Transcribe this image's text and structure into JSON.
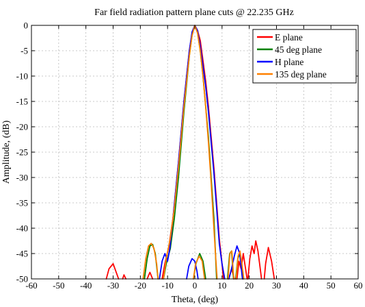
{
  "chart_data": {
    "type": "line",
    "title": "Far field radiation pattern plane cuts @ 22.235 GHz",
    "xlabel": "Theta, (deg)",
    "ylabel": "Amplitude, (dB)",
    "xlim": [
      -60,
      60
    ],
    "ylim": [
      -50,
      0
    ],
    "xticks": [
      -60,
      -50,
      -40,
      -30,
      -20,
      -10,
      0,
      10,
      20,
      30,
      40,
      50,
      60
    ],
    "yticks": [
      0,
      -5,
      -10,
      -15,
      -20,
      -25,
      -30,
      -35,
      -40,
      -45,
      -50
    ],
    "grid": true,
    "legend_position": "top-right",
    "series": [
      {
        "name": "E plane",
        "color": "#ff0000",
        "segments": [
          [
            [
              -32.5,
              -50
            ],
            [
              -31.5,
              -48
            ],
            [
              -30,
              -47
            ],
            [
              -29,
              -48.5
            ],
            [
              -28,
              -50
            ]
          ],
          [
            [
              -26.5,
              -50
            ],
            [
              -26,
              -49.2
            ],
            [
              -25.3,
              -50
            ]
          ],
          [
            [
              -17.5,
              -50
            ],
            [
              -16.5,
              -48.7
            ],
            [
              -15.5,
              -50
            ]
          ],
          [
            [
              -12,
              -50
            ],
            [
              -11,
              -47
            ],
            [
              -9.5,
              -43.5
            ],
            [
              -8,
              -38
            ],
            [
              -6,
              -27
            ],
            [
              -4,
              -15
            ],
            [
              -2,
              -5
            ],
            [
              -1,
              -1.5
            ],
            [
              0,
              0
            ],
            [
              1,
              -1
            ],
            [
              2,
              -3
            ],
            [
              3,
              -7
            ],
            [
              4,
              -11
            ],
            [
              5,
              -16
            ],
            [
              6,
              -22
            ],
            [
              7,
              -28
            ],
            [
              8,
              -35
            ],
            [
              9,
              -42
            ],
            [
              10,
              -47
            ],
            [
              10.5,
              -50
            ]
          ],
          [
            [
              12.5,
              -50
            ],
            [
              13.5,
              -48
            ],
            [
              14.5,
              -50
            ]
          ],
          [
            [
              15.5,
              -50
            ],
            [
              16.2,
              -46.5
            ],
            [
              17,
              -48
            ],
            [
              17.8,
              -45
            ],
            [
              18.5,
              -47.5
            ],
            [
              19.2,
              -50
            ]
          ],
          [
            [
              19.5,
              -50
            ],
            [
              20.2,
              -46
            ],
            [
              21,
              -43.5
            ],
            [
              21.8,
              -45
            ],
            [
              22.4,
              -42.5
            ],
            [
              23.2,
              -44.5
            ],
            [
              23.8,
              -47
            ],
            [
              24.5,
              -50
            ]
          ],
          [
            [
              25.5,
              -50
            ],
            [
              26,
              -47
            ],
            [
              27,
              -43.8
            ],
            [
              28.2,
              -46.5
            ],
            [
              29.2,
              -50
            ]
          ]
        ]
      },
      {
        "name": "45 deg plane",
        "color": "#008000",
        "segments": [
          [
            [
              -18.5,
              -50
            ],
            [
              -17.5,
              -46
            ],
            [
              -16.5,
              -43.5
            ],
            [
              -15.5,
              -43.2
            ],
            [
              -14.5,
              -45
            ],
            [
              -13.5,
              -50
            ]
          ],
          [
            [
              -11.5,
              -50
            ],
            [
              -10.5,
              -47
            ],
            [
              -9,
              -44
            ],
            [
              -7.5,
              -38
            ],
            [
              -6,
              -30
            ],
            [
              -4,
              -17
            ],
            [
              -2,
              -6
            ],
            [
              -1,
              -2
            ],
            [
              0,
              0
            ],
            [
              1,
              -1.5
            ],
            [
              2,
              -5
            ],
            [
              3,
              -10
            ],
            [
              4,
              -16
            ],
            [
              5,
              -22
            ],
            [
              6,
              -30
            ],
            [
              7,
              -38
            ],
            [
              7.5,
              -44
            ],
            [
              8,
              -50
            ]
          ],
          [
            [
              -0.5,
              -50
            ],
            [
              0.4,
              -47
            ],
            [
              1.8,
              -45
            ],
            [
              3,
              -46.5
            ],
            [
              4,
              -50
            ]
          ],
          [
            [
              12,
              -50
            ],
            [
              12.8,
              -45
            ],
            [
              13.5,
              -44.5
            ],
            [
              14.2,
              -50
            ]
          ],
          [
            [
              15,
              -50
            ],
            [
              15.8,
              -46
            ],
            [
              16.5,
              -45
            ],
            [
              17.2,
              -47.5
            ],
            [
              17.8,
              -50
            ]
          ]
        ]
      },
      {
        "name": "H plane",
        "color": "#0000ff",
        "segments": [
          [
            [
              -13,
              -50
            ],
            [
              -12,
              -46.5
            ],
            [
              -11,
              -45
            ],
            [
              -10,
              -46.5
            ],
            [
              -9.2,
              -44
            ],
            [
              -8,
              -38
            ],
            [
              -6,
              -27
            ],
            [
              -4,
              -15
            ],
            [
              -2,
              -5
            ],
            [
              -1,
              -1.3
            ],
            [
              0,
              0
            ],
            [
              1,
              -1
            ],
            [
              2,
              -4
            ],
            [
              3,
              -8
            ],
            [
              4,
              -12
            ],
            [
              5,
              -17
            ],
            [
              6,
              -23
            ],
            [
              7,
              -29
            ],
            [
              8,
              -36
            ],
            [
              9,
              -43
            ],
            [
              10,
              -47
            ],
            [
              11,
              -50
            ]
          ],
          [
            [
              -3,
              -50
            ],
            [
              -2.2,
              -47.5
            ],
            [
              -1,
              -46
            ],
            [
              0,
              -46.5
            ],
            [
              0.8,
              -48.5
            ],
            [
              1.2,
              -50
            ]
          ],
          [
            [
              12.5,
              -50
            ],
            [
              13.5,
              -48
            ],
            [
              14.5,
              -45.5
            ],
            [
              15.5,
              -43.5
            ],
            [
              16.5,
              -45
            ],
            [
              17.5,
              -50
            ]
          ]
        ]
      },
      {
        "name": "135 deg plane",
        "color": "#ff8000",
        "segments": [
          [
            [
              -19,
              -50
            ],
            [
              -18,
              -46
            ],
            [
              -17,
              -43.5
            ],
            [
              -16,
              -43
            ],
            [
              -15,
              -44
            ],
            [
              -14,
              -47
            ],
            [
              -13.5,
              -50
            ]
          ],
          [
            [
              -11.5,
              -50
            ],
            [
              -10.5,
              -46
            ],
            [
              -9,
              -42
            ],
            [
              -7.5,
              -36
            ],
            [
              -6,
              -28
            ],
            [
              -4,
              -16
            ],
            [
              -2,
              -6
            ],
            [
              -1,
              -2
            ],
            [
              0,
              0
            ],
            [
              1,
              -1.5
            ],
            [
              2,
              -5
            ],
            [
              3,
              -10
            ],
            [
              4,
              -16
            ],
            [
              5,
              -23
            ],
            [
              6,
              -31
            ],
            [
              7,
              -40
            ],
            [
              7.7,
              -46
            ],
            [
              8.2,
              -50
            ]
          ],
          [
            [
              -0.5,
              -50
            ],
            [
              0.3,
              -47
            ],
            [
              1.6,
              -45.5
            ],
            [
              2.7,
              -46.5
            ],
            [
              3.6,
              -50
            ]
          ],
          [
            [
              12.2,
              -50
            ],
            [
              12.9,
              -45
            ],
            [
              13.6,
              -44.5
            ],
            [
              14.3,
              -50
            ]
          ],
          [
            [
              15.2,
              -50
            ],
            [
              15.9,
              -45.5
            ],
            [
              16.6,
              -44.5
            ],
            [
              17.3,
              -47
            ],
            [
              18,
              -50
            ]
          ]
        ]
      }
    ]
  }
}
